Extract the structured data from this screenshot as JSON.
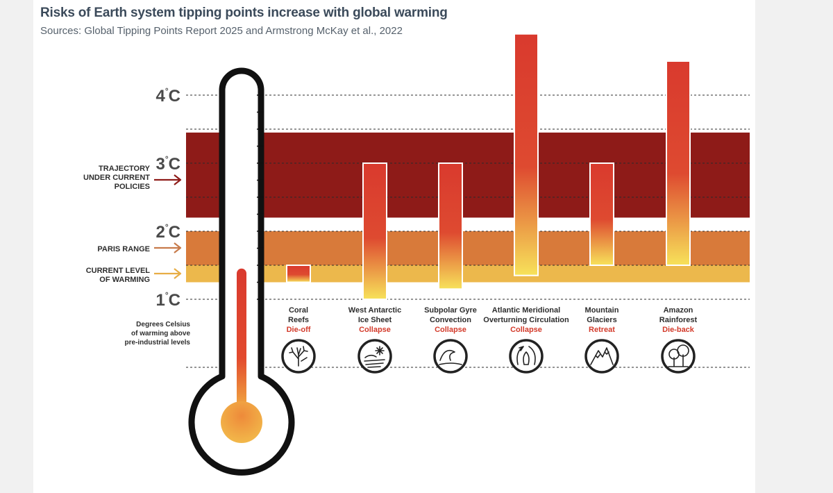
{
  "title": "Risks of Earth system tipping points increase with global warming",
  "subtitle": "Sources: Global Tipping Points Report 2025 and Armstrong McKay et al., 2022",
  "colors": {
    "trajectory_band": "#8e1b18",
    "paris_band": "#d87a3a",
    "current_band": "#ecb84c",
    "bar_top": "#d93a2e",
    "bar_bottom": "#f7e25a",
    "label_red": "#d33a2a",
    "arrow_trajectory": "#8e1b18",
    "arrow_paris": "#c77a4a",
    "arrow_current": "#e7ad45",
    "thermometer_outline": "#111111"
  },
  "chart_data": {
    "type": "bar",
    "bar_style": "floating range bars over temperature bands",
    "y_unit": "°C",
    "ylim": [
      0.0,
      4.9
    ],
    "yticks": [
      {
        "value": 1,
        "label": "1°C"
      },
      {
        "value": 2,
        "label": "2°C"
      },
      {
        "value": 3,
        "label": "3°C"
      },
      {
        "value": 4,
        "label": "4°C"
      }
    ],
    "gridlines": [
      0.0,
      1.0,
      1.5,
      2.0,
      2.5,
      3.0,
      3.5,
      4.0
    ],
    "ylabel": "Degrees Celsius of warming above pre-industrial levels",
    "bands": [
      {
        "name": "TRAJECTORY UNDER CURRENT POLICIES",
        "from": 2.2,
        "to": 3.45,
        "color": "#8e1b18"
      },
      {
        "name": "PARIS RANGE",
        "from": 1.5,
        "to": 2.0,
        "color": "#d87a3a"
      },
      {
        "name": "CURRENT LEVEL OF WARMING",
        "from": 1.25,
        "to": 1.5,
        "color": "#ecb84c"
      }
    ],
    "items": [
      {
        "name": "Coral Reefs",
        "impact": "Die-off",
        "icon": "coral-icon",
        "low": 1.25,
        "high": 1.5
      },
      {
        "name": "West Antarctic Ice Sheet",
        "impact": "Collapse",
        "icon": "ice-sheet-icon",
        "low": 1.0,
        "high": 3.0
      },
      {
        "name": "Subpolar Gyre Convection",
        "impact": "Collapse",
        "icon": "wave-icon",
        "low": 1.15,
        "high": 3.0
      },
      {
        "name": "Atlantic Meridional Overturning Circulation",
        "impact": "Collapse",
        "icon": "ocean-current-icon",
        "low": 1.35,
        "high": 4.9
      },
      {
        "name": "Mountain Glaciers",
        "impact": "Retreat",
        "icon": "mountain-icon",
        "low": 1.5,
        "high": 3.0
      },
      {
        "name": "Amazon Rainforest",
        "impact": "Die-back",
        "icon": "tree-icon",
        "low": 1.5,
        "high": 4.5
      }
    ],
    "thermometer_level": 1.4
  }
}
